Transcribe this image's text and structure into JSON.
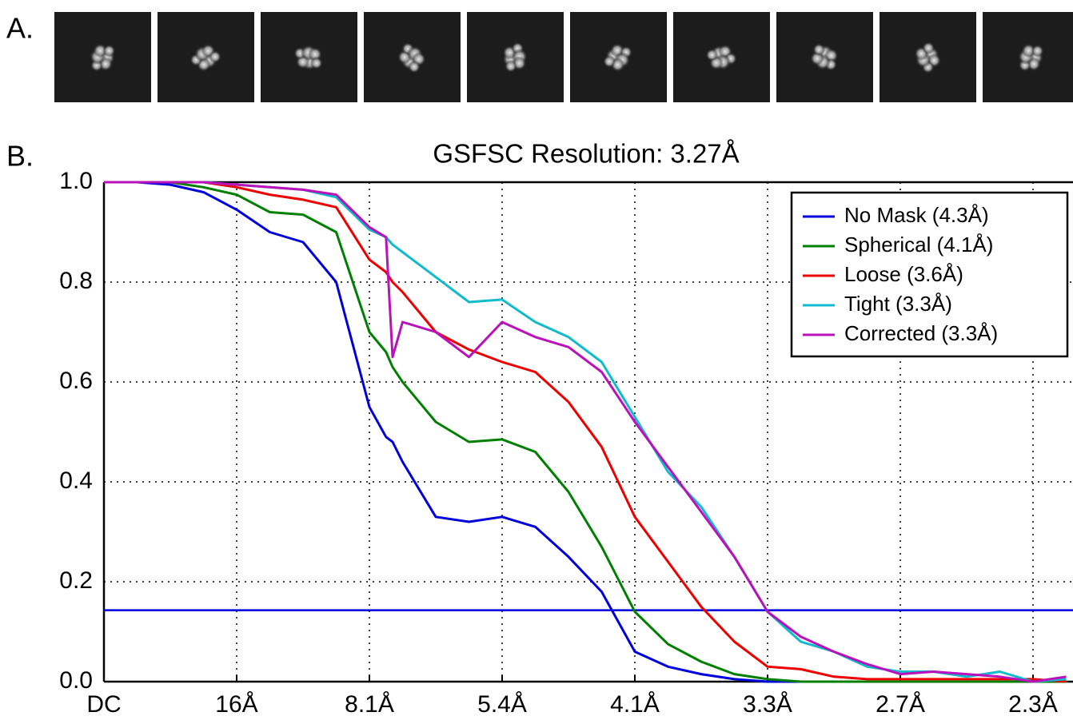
{
  "panel_labels": [
    "A.",
    "B."
  ],
  "chart_data": {
    "type": "line",
    "title": "GSFSC Resolution: 3.27Å",
    "x": [
      0,
      0.25,
      0.5,
      0.75,
      1.0,
      1.25,
      1.5,
      1.75,
      2.0,
      2.125,
      2.175,
      2.25,
      2.5,
      2.75,
      3.0,
      3.25,
      3.5,
      3.75,
      4.0,
      4.25,
      4.5,
      4.75,
      5.0,
      5.25,
      5.5,
      5.75,
      6.0,
      6.25,
      6.5,
      6.75,
      7.0,
      7.25
    ],
    "series": [
      {
        "name": "No Mask (4.3Å)",
        "color": "#0000dd",
        "values": [
          1,
          1,
          0.995,
          0.98,
          0.945,
          0.9,
          0.88,
          0.8,
          0.55,
          0.49,
          0.48,
          0.44,
          0.33,
          0.32,
          0.33,
          0.31,
          0.25,
          0.18,
          0.06,
          0.03,
          0.015,
          0.005,
          0,
          0,
          0,
          0,
          0,
          0,
          0,
          0,
          0,
          0
        ]
      },
      {
        "name": "Spherical (4.1Å)",
        "color": "#007f00",
        "values": [
          1,
          1,
          1,
          0.99,
          0.975,
          0.94,
          0.935,
          0.9,
          0.7,
          0.66,
          0.63,
          0.6,
          0.52,
          0.48,
          0.485,
          0.46,
          0.38,
          0.27,
          0.14,
          0.075,
          0.04,
          0.015,
          0.005,
          0,
          0,
          0,
          0,
          0,
          0,
          0,
          0,
          0
        ]
      },
      {
        "name": "Loose (3.6Å)",
        "color": "#ee0000",
        "values": [
          1,
          1,
          1,
          1,
          0.99,
          0.975,
          0.965,
          0.95,
          0.845,
          0.82,
          0.8,
          0.78,
          0.7,
          0.665,
          0.64,
          0.62,
          0.56,
          0.47,
          0.33,
          0.24,
          0.15,
          0.08,
          0.03,
          0.025,
          0.01,
          0.005,
          0.005,
          0.005,
          0.005,
          0.005,
          0.005,
          0
        ]
      },
      {
        "name": "Tight (3.3Å)",
        "color": "#11bbcc",
        "values": [
          1,
          1,
          1,
          1,
          0.995,
          0.99,
          0.985,
          0.97,
          0.905,
          0.89,
          0.875,
          0.86,
          0.81,
          0.76,
          0.765,
          0.72,
          0.69,
          0.64,
          0.53,
          0.42,
          0.35,
          0.25,
          0.14,
          0.08,
          0.06,
          0.03,
          0.02,
          0.02,
          0.01,
          0.02,
          0,
          0.005
        ]
      },
      {
        "name": "Corrected (3.3Å)",
        "color": "#bb11bb",
        "values": [
          1,
          1,
          1,
          1,
          0.995,
          0.99,
          0.985,
          0.975,
          0.91,
          0.89,
          0.65,
          0.72,
          0.7,
          0.65,
          0.72,
          0.69,
          0.67,
          0.62,
          0.52,
          0.43,
          0.34,
          0.25,
          0.14,
          0.09,
          0.06,
          0.035,
          0.015,
          0.02,
          0.015,
          0.01,
          0,
          0.01
        ]
      }
    ],
    "threshold": 0.143,
    "threshold_color": "#0000dd",
    "xlim": [
      0,
      7.3
    ],
    "ylim": [
      0,
      1
    ],
    "xticks": [
      {
        "value": 0,
        "label": "DC"
      },
      {
        "value": 1,
        "label": "16Å"
      },
      {
        "value": 2,
        "label": "8.1Å"
      },
      {
        "value": 3,
        "label": "5.4Å"
      },
      {
        "value": 4,
        "label": "4.1Å"
      },
      {
        "value": 5,
        "label": "3.3Å"
      },
      {
        "value": 6,
        "label": "2.7Å"
      },
      {
        "value": 7,
        "label": "2.3Å"
      }
    ],
    "yticks": [
      {
        "value": 0,
        "label": "0.0"
      },
      0.2,
      0.4,
      0.6,
      0.8,
      {
        "value": 1,
        "label": "1.0"
      }
    ],
    "grid": true,
    "legend": "upper right"
  }
}
